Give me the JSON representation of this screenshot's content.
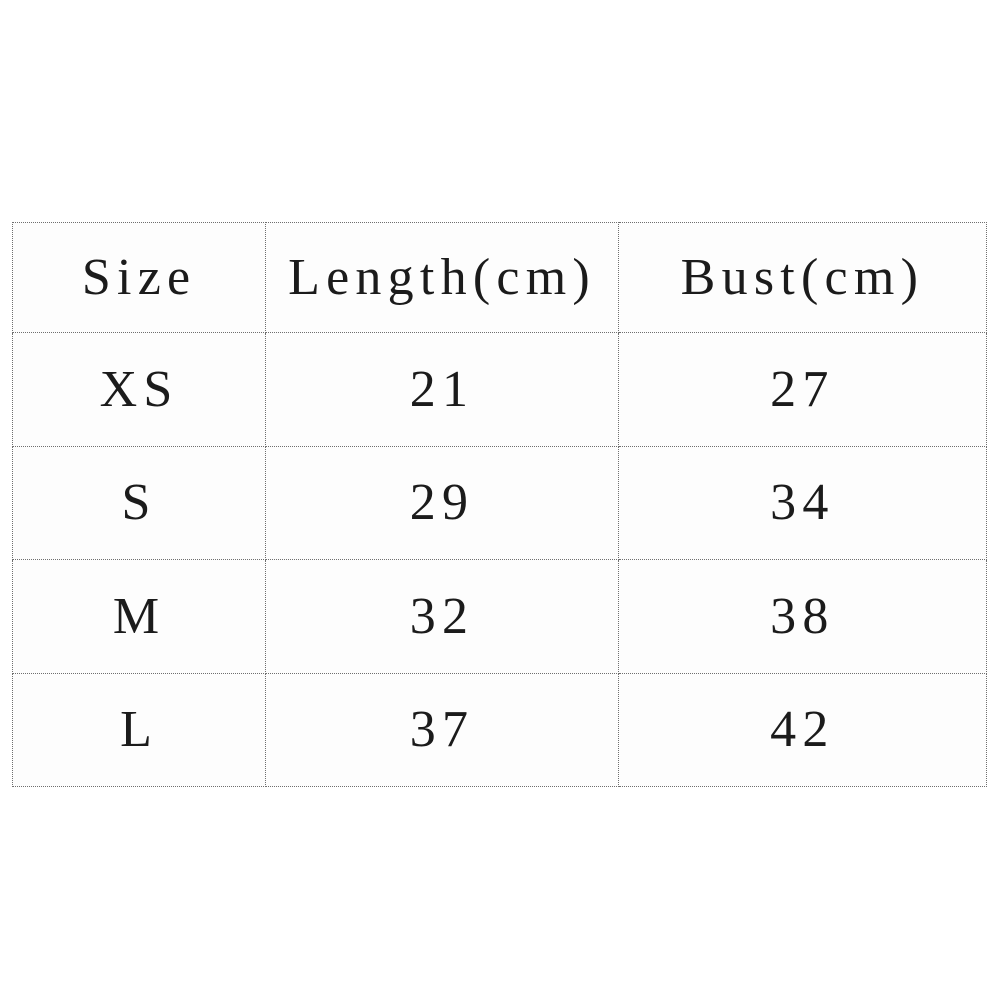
{
  "chart_data": {
    "type": "table",
    "columns": [
      "Size",
      "Length(cm)",
      "Bust(cm)"
    ],
    "rows": [
      [
        "XS",
        "21",
        "27"
      ],
      [
        "S",
        "29",
        "34"
      ],
      [
        "M",
        "32",
        "38"
      ],
      [
        "L",
        "37",
        "42"
      ]
    ]
  },
  "style": {
    "border_color": "#6f6f6f",
    "text_color": "#1b1b1b",
    "background_color": "#ffffff"
  }
}
